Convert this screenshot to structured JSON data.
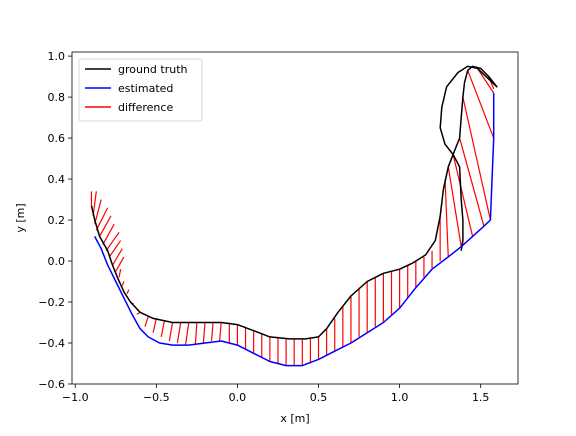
{
  "chart_data": {
    "type": "line",
    "xlabel": "x [m]",
    "ylabel": "y [m]",
    "xlim": [
      -1.02,
      1.73
    ],
    "ylim": [
      -0.6,
      1.02
    ],
    "xticks": [
      -1.0,
      -0.5,
      0.0,
      0.5,
      1.0,
      1.5
    ],
    "yticks": [
      -0.6,
      -0.4,
      -0.2,
      0.0,
      0.2,
      0.4,
      0.6,
      0.8,
      1.0
    ],
    "xtick_labels": [
      "−1.0",
      "−0.5",
      "0.0",
      "0.5",
      "1.0",
      "1.5"
    ],
    "ytick_labels": [
      "−0.6",
      "−0.4",
      "−0.2",
      "0.0",
      "0.2",
      "0.4",
      "0.6",
      "0.8",
      "1.0"
    ],
    "grid": false,
    "legend_position": "upper-left",
    "series": [
      {
        "name": "ground truth",
        "color": "#000000",
        "points": [
          [
            -0.9,
            0.27
          ],
          [
            -0.88,
            0.2
          ],
          [
            -0.85,
            0.12
          ],
          [
            -0.8,
            0.05
          ],
          [
            -0.77,
            -0.02
          ],
          [
            -0.74,
            -0.08
          ],
          [
            -0.7,
            -0.15
          ],
          [
            -0.66,
            -0.2
          ],
          [
            -0.6,
            -0.25
          ],
          [
            -0.52,
            -0.28
          ],
          [
            -0.4,
            -0.3
          ],
          [
            -0.25,
            -0.3
          ],
          [
            -0.1,
            -0.3
          ],
          [
            0.0,
            -0.31
          ],
          [
            0.1,
            -0.34
          ],
          [
            0.2,
            -0.37
          ],
          [
            0.32,
            -0.38
          ],
          [
            0.42,
            -0.38
          ],
          [
            0.5,
            -0.37
          ],
          [
            0.55,
            -0.33
          ],
          [
            0.62,
            -0.25
          ],
          [
            0.7,
            -0.17
          ],
          [
            0.8,
            -0.1
          ],
          [
            0.9,
            -0.06
          ],
          [
            1.0,
            -0.04
          ],
          [
            1.08,
            -0.01
          ],
          [
            1.16,
            0.03
          ],
          [
            1.22,
            0.1
          ],
          [
            1.25,
            0.22
          ],
          [
            1.27,
            0.35
          ],
          [
            1.3,
            0.46
          ],
          [
            1.34,
            0.54
          ],
          [
            1.37,
            0.6
          ],
          [
            1.38,
            0.7
          ],
          [
            1.39,
            0.8
          ],
          [
            1.4,
            0.87
          ],
          [
            1.42,
            0.93
          ],
          [
            1.45,
            0.95
          ],
          [
            1.5,
            0.94
          ],
          [
            1.55,
            0.9
          ],
          [
            1.6,
            0.85
          ],
          [
            1.48,
            0.94
          ],
          [
            1.42,
            0.95
          ],
          [
            1.36,
            0.92
          ],
          [
            1.29,
            0.85
          ],
          [
            1.26,
            0.75
          ],
          [
            1.25,
            0.65
          ],
          [
            1.28,
            0.57
          ],
          [
            1.33,
            0.52
          ],
          [
            1.37,
            0.46
          ],
          [
            1.38,
            0.3
          ],
          [
            1.39,
            0.2
          ],
          [
            1.39,
            0.1
          ],
          [
            1.38,
            0.05
          ]
        ]
      },
      {
        "name": "estimated",
        "color": "#0000ff",
        "points": [
          [
            -0.88,
            0.12
          ],
          [
            -0.84,
            0.06
          ],
          [
            -0.8,
            -0.02
          ],
          [
            -0.75,
            -0.1
          ],
          [
            -0.7,
            -0.18
          ],
          [
            -0.65,
            -0.26
          ],
          [
            -0.6,
            -0.33
          ],
          [
            -0.55,
            -0.37
          ],
          [
            -0.48,
            -0.4
          ],
          [
            -0.4,
            -0.41
          ],
          [
            -0.3,
            -0.41
          ],
          [
            -0.2,
            -0.4
          ],
          [
            -0.1,
            -0.39
          ],
          [
            0.0,
            -0.41
          ],
          [
            0.1,
            -0.45
          ],
          [
            0.2,
            -0.49
          ],
          [
            0.3,
            -0.51
          ],
          [
            0.4,
            -0.51
          ],
          [
            0.5,
            -0.48
          ],
          [
            0.6,
            -0.44
          ],
          [
            0.7,
            -0.4
          ],
          [
            0.8,
            -0.35
          ],
          [
            0.9,
            -0.3
          ],
          [
            1.0,
            -0.23
          ],
          [
            1.1,
            -0.13
          ],
          [
            1.2,
            -0.04
          ],
          [
            1.3,
            0.02
          ],
          [
            1.38,
            0.07
          ],
          [
            1.45,
            0.12
          ],
          [
            1.52,
            0.17
          ],
          [
            1.56,
            0.2
          ],
          [
            1.58,
            0.6
          ],
          [
            1.58,
            0.82
          ]
        ]
      }
    ],
    "difference_pairs": [
      [
        [
          -0.9,
          0.27
        ],
        [
          -0.9,
          0.34
        ]
      ],
      [
        [
          -0.89,
          0.22
        ],
        [
          -0.87,
          0.34
        ]
      ],
      [
        [
          -0.88,
          0.18
        ],
        [
          -0.84,
          0.3
        ]
      ],
      [
        [
          -0.87,
          0.15
        ],
        [
          -0.8,
          0.26
        ]
      ],
      [
        [
          -0.85,
          0.12
        ],
        [
          -0.78,
          0.22
        ]
      ],
      [
        [
          -0.83,
          0.08
        ],
        [
          -0.76,
          0.18
        ]
      ],
      [
        [
          -0.81,
          0.05
        ],
        [
          -0.73,
          0.14
        ]
      ],
      [
        [
          -0.79,
          0.02
        ],
        [
          -0.72,
          0.1
        ]
      ],
      [
        [
          -0.77,
          -0.02
        ],
        [
          -0.71,
          0.06
        ]
      ],
      [
        [
          -0.75,
          -0.05
        ],
        [
          -0.7,
          0.02
        ]
      ],
      [
        [
          -0.73,
          -0.08
        ],
        [
          -0.72,
          -0.04
        ]
      ],
      [
        [
          -0.71,
          -0.12
        ],
        [
          -0.7,
          -0.1
        ]
      ],
      [
        [
          -0.68,
          -0.16
        ],
        [
          -0.67,
          -0.14
        ]
      ],
      [
        [
          -0.64,
          -0.21
        ],
        [
          -0.66,
          -0.2
        ]
      ],
      [
        [
          -0.6,
          -0.25
        ],
        [
          -0.62,
          -0.26
        ]
      ],
      [
        [
          -0.55,
          -0.27
        ],
        [
          -0.57,
          -0.32
        ]
      ],
      [
        [
          -0.5,
          -0.28
        ],
        [
          -0.52,
          -0.35
        ]
      ],
      [
        [
          -0.45,
          -0.29
        ],
        [
          -0.47,
          -0.37
        ]
      ],
      [
        [
          -0.4,
          -0.3
        ],
        [
          -0.42,
          -0.39
        ]
      ],
      [
        [
          -0.35,
          -0.3
        ],
        [
          -0.37,
          -0.4
        ]
      ],
      [
        [
          -0.3,
          -0.3
        ],
        [
          -0.32,
          -0.41
        ]
      ],
      [
        [
          -0.25,
          -0.3
        ],
        [
          -0.26,
          -0.41
        ]
      ],
      [
        [
          -0.2,
          -0.3
        ],
        [
          -0.21,
          -0.4
        ]
      ],
      [
        [
          -0.15,
          -0.3
        ],
        [
          -0.16,
          -0.39
        ]
      ],
      [
        [
          -0.1,
          -0.3
        ],
        [
          -0.11,
          -0.39
        ]
      ],
      [
        [
          -0.05,
          -0.3
        ],
        [
          -0.05,
          -0.4
        ]
      ],
      [
        [
          0.0,
          -0.31
        ],
        [
          0.0,
          -0.41
        ]
      ],
      [
        [
          0.05,
          -0.32
        ],
        [
          0.05,
          -0.43
        ]
      ],
      [
        [
          0.1,
          -0.34
        ],
        [
          0.1,
          -0.45
        ]
      ],
      [
        [
          0.15,
          -0.35
        ],
        [
          0.15,
          -0.47
        ]
      ],
      [
        [
          0.2,
          -0.37
        ],
        [
          0.2,
          -0.49
        ]
      ],
      [
        [
          0.25,
          -0.37
        ],
        [
          0.25,
          -0.5
        ]
      ],
      [
        [
          0.3,
          -0.38
        ],
        [
          0.3,
          -0.51
        ]
      ],
      [
        [
          0.35,
          -0.38
        ],
        [
          0.35,
          -0.51
        ]
      ],
      [
        [
          0.4,
          -0.38
        ],
        [
          0.4,
          -0.51
        ]
      ],
      [
        [
          0.45,
          -0.38
        ],
        [
          0.45,
          -0.5
        ]
      ],
      [
        [
          0.5,
          -0.37
        ],
        [
          0.5,
          -0.48
        ]
      ],
      [
        [
          0.55,
          -0.33
        ],
        [
          0.55,
          -0.46
        ]
      ],
      [
        [
          0.6,
          -0.28
        ],
        [
          0.6,
          -0.44
        ]
      ],
      [
        [
          0.65,
          -0.22
        ],
        [
          0.65,
          -0.42
        ]
      ],
      [
        [
          0.7,
          -0.17
        ],
        [
          0.7,
          -0.4
        ]
      ],
      [
        [
          0.75,
          -0.13
        ],
        [
          0.75,
          -0.37
        ]
      ],
      [
        [
          0.8,
          -0.1
        ],
        [
          0.8,
          -0.35
        ]
      ],
      [
        [
          0.85,
          -0.08
        ],
        [
          0.85,
          -0.32
        ]
      ],
      [
        [
          0.9,
          -0.06
        ],
        [
          0.9,
          -0.3
        ]
      ],
      [
        [
          0.95,
          -0.05
        ],
        [
          0.95,
          -0.26
        ]
      ],
      [
        [
          1.0,
          -0.04
        ],
        [
          1.0,
          -0.23
        ]
      ],
      [
        [
          1.05,
          -0.02
        ],
        [
          1.05,
          -0.18
        ]
      ],
      [
        [
          1.1,
          0.0
        ],
        [
          1.1,
          -0.13
        ]
      ],
      [
        [
          1.15,
          0.02
        ],
        [
          1.15,
          -0.08
        ]
      ],
      [
        [
          1.2,
          0.05
        ],
        [
          1.2,
          -0.04
        ]
      ],
      [
        [
          1.25,
          0.22
        ],
        [
          1.25,
          0.0
        ]
      ],
      [
        [
          1.28,
          0.4
        ],
        [
          1.3,
          0.02
        ]
      ],
      [
        [
          1.3,
          0.46
        ],
        [
          1.38,
          0.07
        ]
      ],
      [
        [
          1.33,
          0.52
        ],
        [
          1.45,
          0.12
        ]
      ],
      [
        [
          1.37,
          0.6
        ],
        [
          1.52,
          0.17
        ]
      ],
      [
        [
          1.39,
          0.8
        ],
        [
          1.56,
          0.2
        ]
      ],
      [
        [
          1.42,
          0.93
        ],
        [
          1.58,
          0.6
        ]
      ],
      [
        [
          1.48,
          0.94
        ],
        [
          1.58,
          0.82
        ]
      ],
      [
        [
          1.55,
          0.9
        ],
        [
          1.58,
          0.84
        ]
      ]
    ]
  },
  "legend": [
    {
      "label": "ground truth",
      "color": "#000000"
    },
    {
      "label": "estimated",
      "color": "#0000ff"
    },
    {
      "label": "difference",
      "color": "#ff0000"
    }
  ]
}
